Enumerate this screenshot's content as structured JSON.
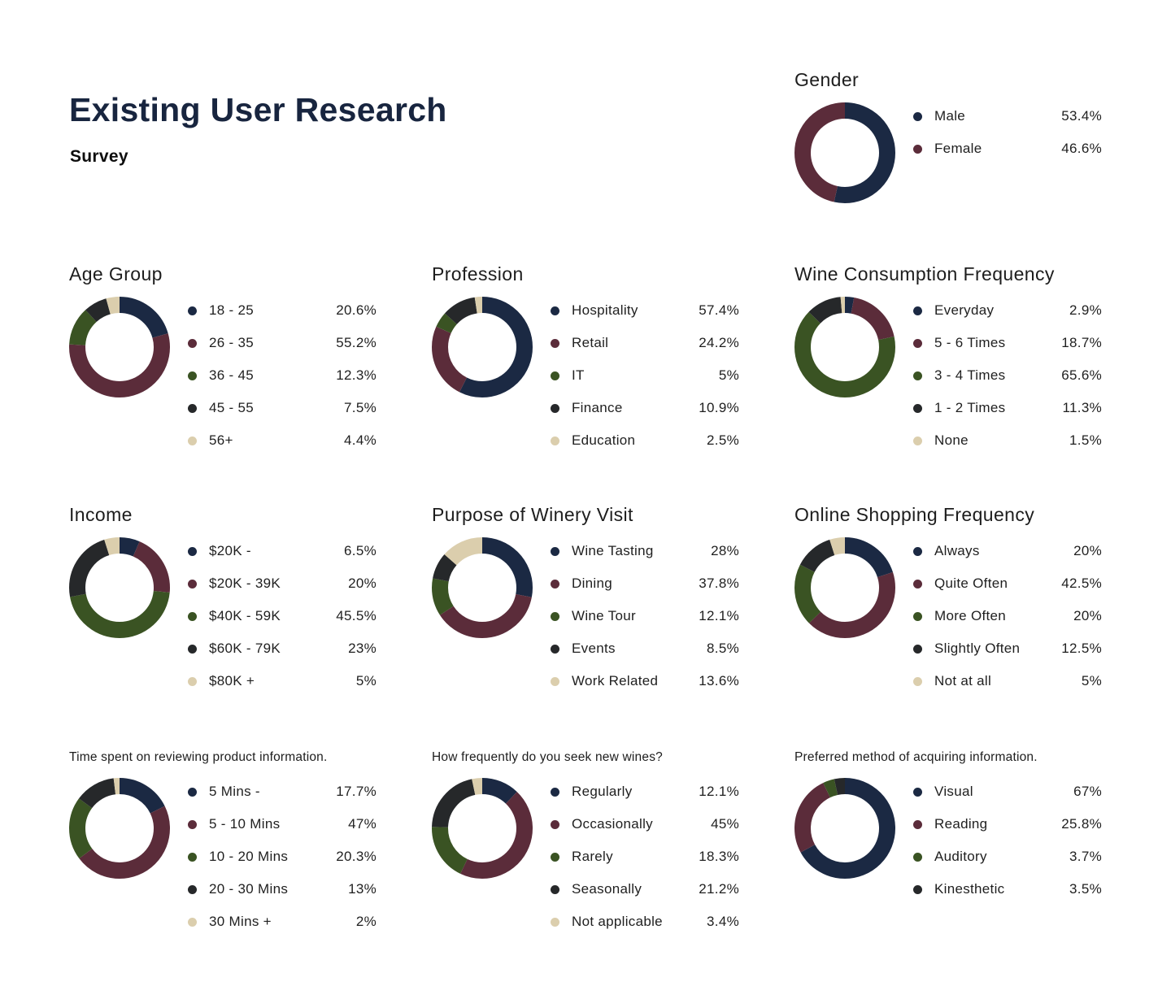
{
  "page": {
    "title": "Existing User Research",
    "subtitle": "Survey",
    "background_color": "#ffffff",
    "title_color": "#18253f"
  },
  "palette": [
    "#1b2943",
    "#5b2c3a",
    "#3a5323",
    "#26282a",
    "#dbcead"
  ],
  "chart_data": [
    {
      "id": "gender",
      "type": "donut",
      "title": "Gender",
      "slot": "r1c3",
      "title_style": "normal",
      "legend_position": "right",
      "categories": [
        "Male",
        "Female"
      ],
      "values": [
        53.4,
        46.6
      ],
      "value_labels": [
        "53.4%",
        "46.6%"
      ],
      "colors": [
        "#1b2943",
        "#5b2c3a"
      ]
    },
    {
      "id": "age-group",
      "type": "donut",
      "title": "Age Group",
      "slot": "r2c1",
      "title_style": "normal",
      "legend_position": "right",
      "categories": [
        "18 - 25",
        "26 - 35",
        "36 - 45",
        "45 - 55",
        "56+"
      ],
      "values": [
        20.6,
        55.2,
        12.3,
        7.5,
        4.4
      ],
      "value_labels": [
        "20.6%",
        "55.2%",
        "12.3%",
        "7.5%",
        "4.4%"
      ],
      "colors": [
        "#1b2943",
        "#5b2c3a",
        "#3a5323",
        "#26282a",
        "#dbcead"
      ]
    },
    {
      "id": "profession",
      "type": "donut",
      "title": "Profession",
      "slot": "r2c2",
      "title_style": "normal",
      "legend_position": "right",
      "categories": [
        "Hospitality",
        "Retail",
        "IT",
        "Finance",
        "Education"
      ],
      "values": [
        57.4,
        24.2,
        5,
        10.9,
        2.5
      ],
      "value_labels": [
        "57.4%",
        "24.2%",
        "5%",
        "10.9%",
        "2.5%"
      ],
      "colors": [
        "#1b2943",
        "#5b2c3a",
        "#3a5323",
        "#26282a",
        "#dbcead"
      ]
    },
    {
      "id": "wine-consumption-frequency",
      "type": "donut",
      "title": "Wine Consumption Frequency",
      "slot": "r2c3",
      "title_style": "normal",
      "legend_position": "right",
      "categories": [
        "Everyday",
        "5 - 6 Times",
        "3 - 4 Times",
        "1 - 2 Times",
        "None"
      ],
      "values": [
        2.9,
        18.7,
        65.6,
        11.3,
        1.5
      ],
      "value_labels": [
        "2.9%",
        "18.7%",
        "65.6%",
        "11.3%",
        "1.5%"
      ],
      "colors": [
        "#1b2943",
        "#5b2c3a",
        "#3a5323",
        "#26282a",
        "#dbcead"
      ]
    },
    {
      "id": "income",
      "type": "donut",
      "title": "Income",
      "slot": "r3c1",
      "title_style": "normal",
      "legend_position": "right",
      "categories": [
        "$20K -",
        "$20K - 39K",
        "$40K - 59K",
        "$60K - 79K",
        "$80K +"
      ],
      "values": [
        6.5,
        20,
        45.5,
        23,
        5
      ],
      "value_labels": [
        "6.5%",
        "20%",
        "45.5%",
        "23%",
        "5%"
      ],
      "colors": [
        "#1b2943",
        "#5b2c3a",
        "#3a5323",
        "#26282a",
        "#dbcead"
      ]
    },
    {
      "id": "purpose-of-winery-visit",
      "type": "donut",
      "title": "Purpose of Winery Visit",
      "slot": "r3c2",
      "title_style": "normal",
      "legend_position": "right",
      "categories": [
        "Wine Tasting",
        "Dining",
        "Wine Tour",
        "Events",
        "Work Related"
      ],
      "values": [
        28,
        37.8,
        12.1,
        8.5,
        13.6
      ],
      "value_labels": [
        "28%",
        "37.8%",
        "12.1%",
        "8.5%",
        "13.6%"
      ],
      "colors": [
        "#1b2943",
        "#5b2c3a",
        "#3a5323",
        "#26282a",
        "#dbcead"
      ]
    },
    {
      "id": "online-shopping-frequency",
      "type": "donut",
      "title": "Online Shopping Frequency",
      "slot": "r3c3",
      "title_style": "normal",
      "legend_position": "right",
      "categories": [
        "Always",
        "Quite Often",
        "More Often",
        "Slightly Often",
        "Not at all"
      ],
      "values": [
        20,
        42.5,
        20,
        12.5,
        5
      ],
      "value_labels": [
        "20%",
        "42.5%",
        "20%",
        "12.5%",
        "5%"
      ],
      "colors": [
        "#1b2943",
        "#5b2c3a",
        "#3a5323",
        "#26282a",
        "#dbcead"
      ]
    },
    {
      "id": "time-spent-reviewing",
      "type": "donut",
      "title": "Time spent on reviewing product information.",
      "slot": "r4c1",
      "title_style": "small",
      "legend_position": "right",
      "categories": [
        "5 Mins -",
        "5 - 10 Mins",
        "10 - 20 Mins",
        "20 - 30 Mins",
        "30 Mins +"
      ],
      "values": [
        17.7,
        47,
        20.3,
        13,
        2
      ],
      "value_labels": [
        "17.7%",
        "47%",
        "20.3%",
        "13%",
        "2%"
      ],
      "colors": [
        "#1b2943",
        "#5b2c3a",
        "#3a5323",
        "#26282a",
        "#dbcead"
      ]
    },
    {
      "id": "seek-new-wines",
      "type": "donut",
      "title": "How frequently do you seek new wines?",
      "slot": "r4c2",
      "title_style": "small",
      "legend_position": "right",
      "categories": [
        "Regularly",
        "Occasionally",
        "Rarely",
        "Seasonally",
        "Not applicable"
      ],
      "values": [
        12.1,
        45,
        18.3,
        21.2,
        3.4
      ],
      "value_labels": [
        "12.1%",
        "45%",
        "18.3%",
        "21.2%",
        "3.4%"
      ],
      "colors": [
        "#1b2943",
        "#5b2c3a",
        "#3a5323",
        "#26282a",
        "#dbcead"
      ]
    },
    {
      "id": "preferred-method",
      "type": "donut",
      "title": "Preferred method of acquiring information.",
      "slot": "r4c3",
      "title_style": "small",
      "legend_position": "right",
      "categories": [
        "Visual",
        "Reading",
        "Auditory",
        "Kinesthetic"
      ],
      "values": [
        67,
        25.8,
        3.7,
        3.5
      ],
      "value_labels": [
        "67%",
        "25.8%",
        "3.7%",
        "3.5%"
      ],
      "colors": [
        "#1b2943",
        "#5b2c3a",
        "#3a5323",
        "#26282a"
      ]
    }
  ]
}
